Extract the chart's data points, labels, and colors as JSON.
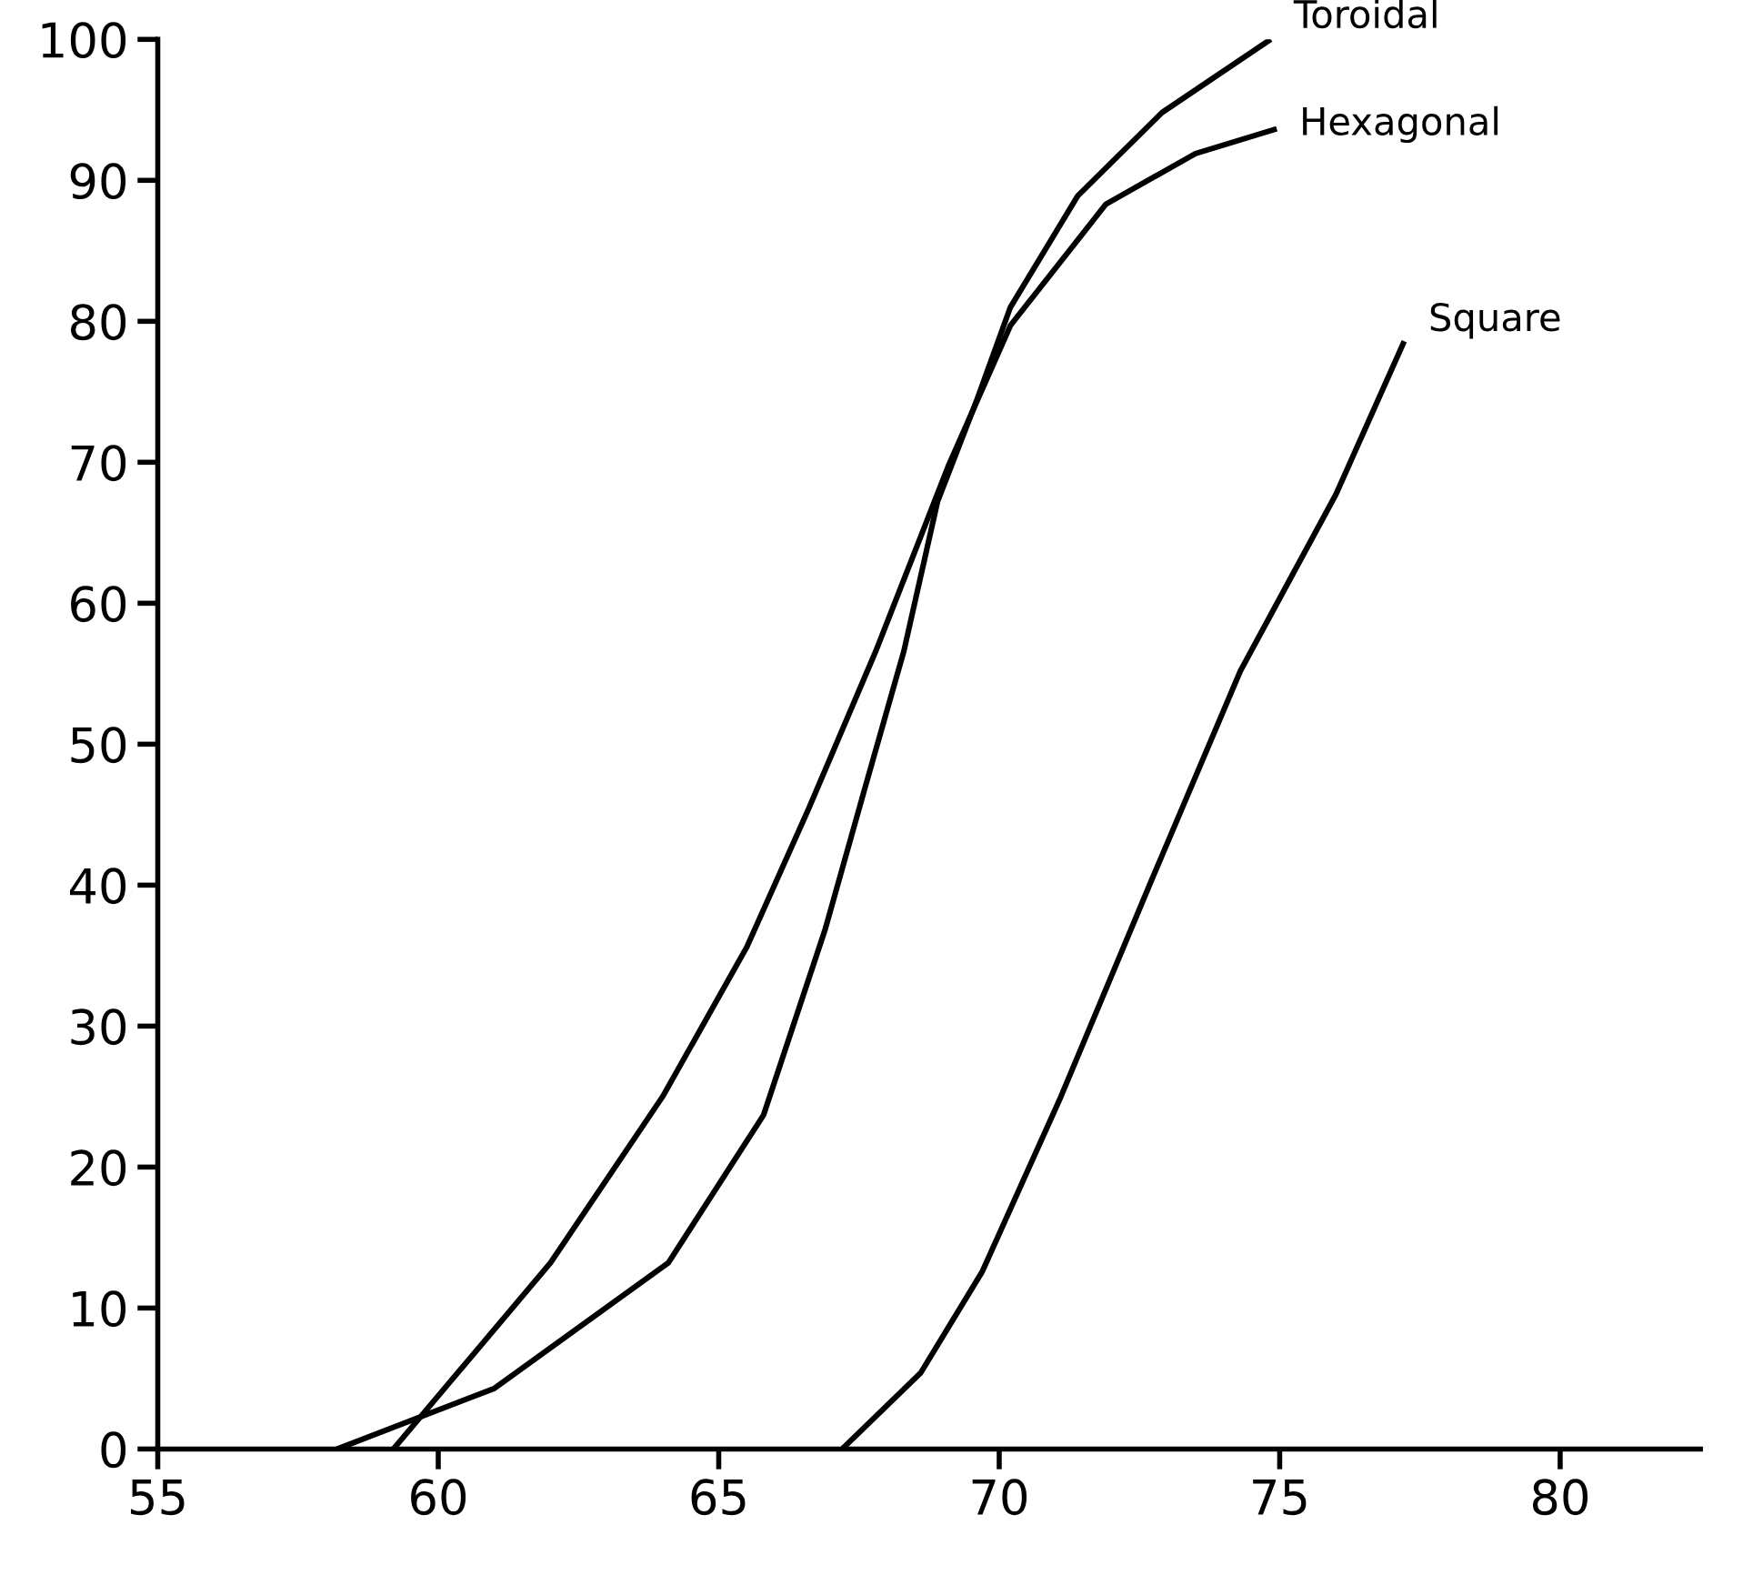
{
  "chart_data": {
    "type": "line",
    "xlim": [
      55,
      82.5
    ],
    "ylim": [
      0,
      100
    ],
    "xticks": [
      55,
      60,
      65,
      70,
      75,
      80
    ],
    "yticks": [
      0,
      10,
      20,
      30,
      40,
      50,
      60,
      70,
      80,
      90,
      100
    ],
    "grid": false,
    "legend": false,
    "marker": "none",
    "line_style": "solid",
    "series": [
      {
        "name": "Toroidal",
        "color": "#000000",
        "x": [
          58.2,
          61.0,
          64.1,
          65.8,
          66.9,
          67.6,
          68.3,
          68.9,
          69.6,
          70.2,
          71.4,
          72.9,
          74.8
        ],
        "values": [
          0,
          4.3,
          13.2,
          23.7,
          36.9,
          46.8,
          56.6,
          67.2,
          74.4,
          81.0,
          88.9,
          94.8,
          99.9
        ]
      },
      {
        "name": "Hexagonal",
        "color": "#000000",
        "x": [
          59.2,
          62.0,
          64.0,
          65.5,
          66.6,
          67.8,
          69.1,
          70.2,
          71.9,
          73.5,
          74.9
        ],
        "values": [
          0,
          13.2,
          25.0,
          35.6,
          45.4,
          56.6,
          69.8,
          79.7,
          88.3,
          91.9,
          93.6
        ]
      },
      {
        "name": "Square",
        "color": "#000000",
        "x": [
          67.2,
          68.6,
          69.7,
          71.1,
          72.7,
          74.3,
          76.0,
          77.2
        ],
        "values": [
          0,
          5.4,
          12.6,
          25.0,
          40.2,
          55.2,
          67.7,
          78.4
        ]
      }
    ]
  }
}
